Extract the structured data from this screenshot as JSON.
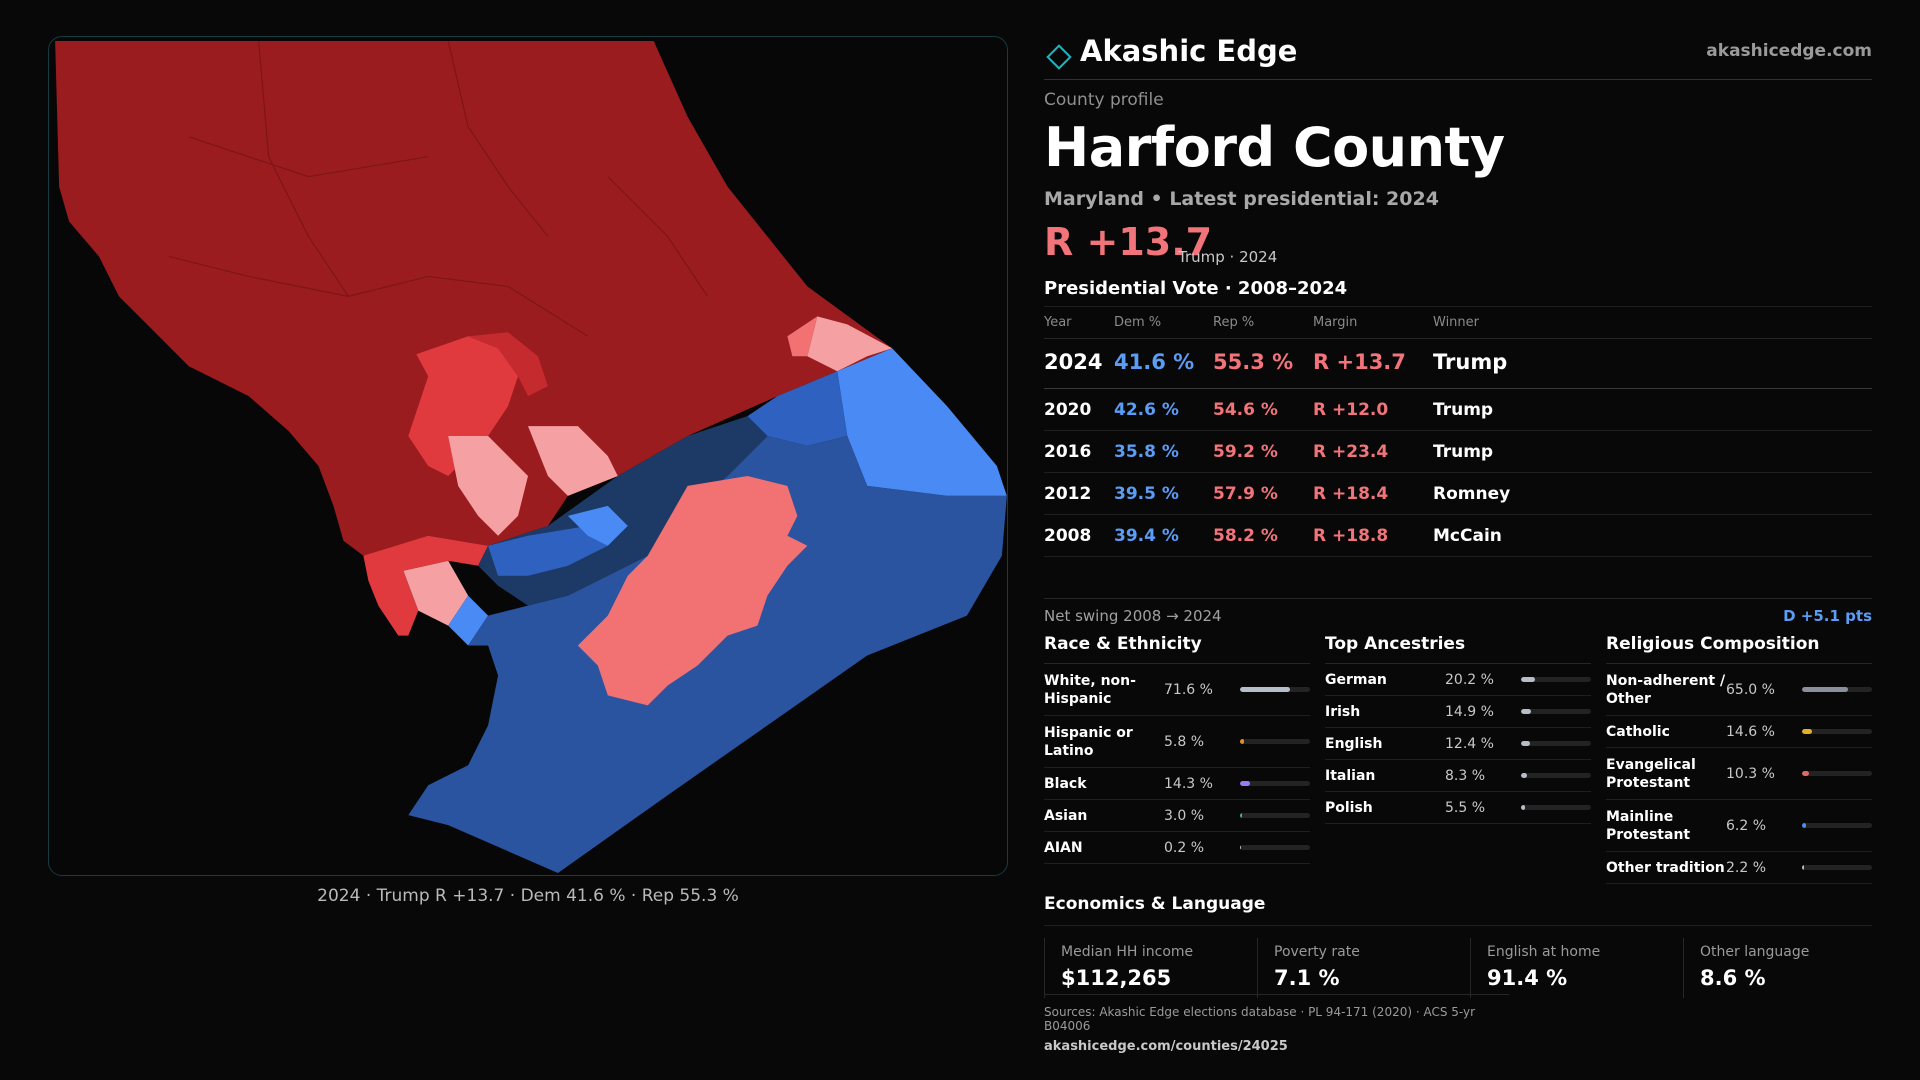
{
  "brand": {
    "name": "Akashic Edge",
    "url": "akashicedge.com"
  },
  "profile": {
    "label": "County profile",
    "county": "Harford County",
    "state_line": "Maryland • Latest presidential: 2024",
    "headline_margin": "R +13.7",
    "headline_winner": "Trump · 2024"
  },
  "map": {
    "caption": "2024 · Trump R +13.7 · Dem 41.6 % · Rep 55.3 %"
  },
  "results": {
    "title": "Presidential Vote · 2008–2024",
    "headers": {
      "year": "Year",
      "dem": "Dem %",
      "rep": "Rep %",
      "margin": "Margin",
      "winner": "Winner"
    },
    "rows": [
      {
        "year": "2024",
        "dem": "41.6 %",
        "rep": "55.3 %",
        "margin": "R +13.7",
        "winner": "Trump"
      },
      {
        "year": "2020",
        "dem": "42.6 %",
        "rep": "54.6 %",
        "margin": "R +12.0",
        "winner": "Trump"
      },
      {
        "year": "2016",
        "dem": "35.8 %",
        "rep": "59.2 %",
        "margin": "R +23.4",
        "winner": "Trump"
      },
      {
        "year": "2012",
        "dem": "39.5 %",
        "rep": "57.9 %",
        "margin": "R +18.4",
        "winner": "Romney"
      },
      {
        "year": "2008",
        "dem": "39.4 %",
        "rep": "58.2 %",
        "margin": "R +18.8",
        "winner": "McCain"
      }
    ]
  },
  "swing": {
    "label": "Net swing 2008 → 2024",
    "value": "D +5.1 pts"
  },
  "race": {
    "title": "Race & Ethnicity",
    "rows": [
      {
        "label": "White, non-Hispanic",
        "value": "71.6 %",
        "pct": 71.6,
        "color": "#b8bec8"
      },
      {
        "label": "Hispanic or Latino",
        "value": "5.8 %",
        "pct": 5.8,
        "color": "#e0902a"
      },
      {
        "label": "Black",
        "value": "14.3 %",
        "pct": 14.3,
        "color": "#9b7cf0"
      },
      {
        "label": "Asian",
        "value": "3.0 %",
        "pct": 3.0,
        "color": "#3bb6a6"
      },
      {
        "label": "AIAN",
        "value": "0.2 %",
        "pct": 0.2,
        "color": "#b8bec8"
      }
    ]
  },
  "ancestry": {
    "title": "Top Ancestries",
    "rows": [
      {
        "label": "German",
        "value": "20.2 %",
        "pct": 20.2,
        "color": "#b8bec8"
      },
      {
        "label": "Irish",
        "value": "14.9 %",
        "pct": 14.9,
        "color": "#b8bec8"
      },
      {
        "label": "English",
        "value": "12.4 %",
        "pct": 12.4,
        "color": "#b8bec8"
      },
      {
        "label": "Italian",
        "value": "8.3 %",
        "pct": 8.3,
        "color": "#b8bec8"
      },
      {
        "label": "Polish",
        "value": "5.5 %",
        "pct": 5.5,
        "color": "#b8bec8"
      }
    ]
  },
  "religion": {
    "title": "Religious Composition",
    "rows": [
      {
        "label": "Non-adherent / Other",
        "value": "65.0 %",
        "pct": 65.0,
        "color": "#8a8f99"
      },
      {
        "label": "Catholic",
        "value": "14.6 %",
        "pct": 14.6,
        "color": "#e0b02a"
      },
      {
        "label": "Evangelical Protestant",
        "value": "10.3 %",
        "pct": 10.3,
        "color": "#e06a6a"
      },
      {
        "label": "Mainline Protestant",
        "value": "6.2 %",
        "pct": 6.2,
        "color": "#4a8ef0"
      },
      {
        "label": "Other tradition",
        "value": "2.2 %",
        "pct": 2.2,
        "color": "#b8bec8"
      }
    ]
  },
  "economics": {
    "title": "Economics & Language",
    "cards": [
      {
        "label": "Median HH income",
        "value": "$112,265"
      },
      {
        "label": "Poverty rate",
        "value": "7.1 %"
      },
      {
        "label": "English at home",
        "value": "91.4 %"
      },
      {
        "label": "Other language",
        "value": "8.6 %"
      }
    ]
  },
  "footer": {
    "sources": "Sources: Akashic Edge elections database · PL 94-171 (2020) · ACS 5-yr B04006",
    "url": "akashicedge.com/counties/24025"
  },
  "colors": {
    "rep_strong": "#9b1c1f",
    "rep_mid": "#e0393e",
    "rep_light": "#f27173",
    "rep_pale": "#f5a1a3",
    "dem_strong": "#1d3a66",
    "dem_mid": "#2f62c0",
    "dem_light": "#4a8af5",
    "dem_base": "#2a54a0"
  }
}
